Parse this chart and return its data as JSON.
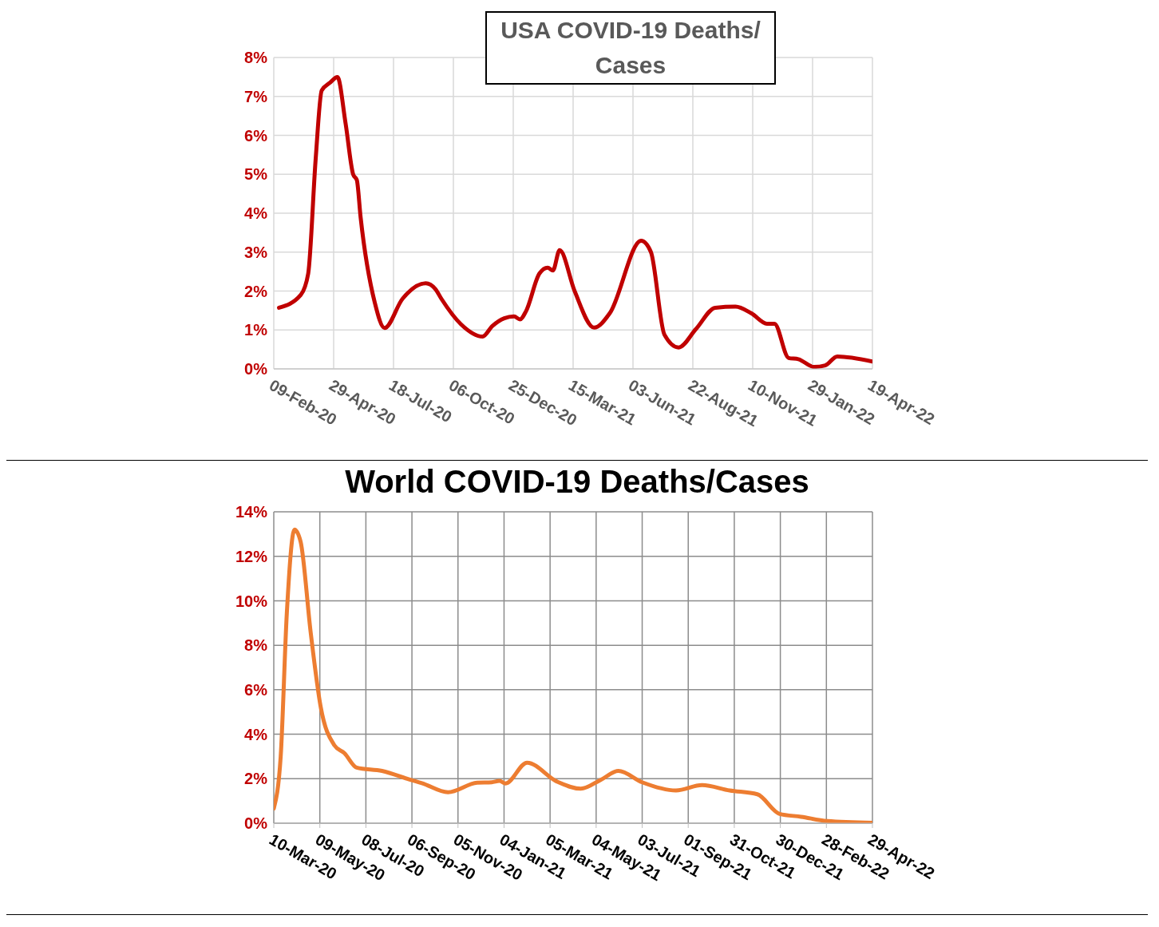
{
  "chart_data": [
    {
      "type": "line",
      "title": "USA COVID-19 Deaths/ Cases",
      "grid": true,
      "line_style": "solid",
      "xlim": [
        "2020-02-09",
        "2022-04-19"
      ],
      "xticks": [
        {
          "value": "2020-02-09",
          "label": "09-Feb-20"
        },
        {
          "value": "2020-04-29",
          "label": "29-Apr-20"
        },
        {
          "value": "2020-07-18",
          "label": "18-Jul-20"
        },
        {
          "value": "2020-10-06",
          "label": "06-Oct-20"
        },
        {
          "value": "2020-12-25",
          "label": "25-Dec-20"
        },
        {
          "value": "2021-03-15",
          "label": "15-Mar-21"
        },
        {
          "value": "2021-06-03",
          "label": "03-Jun-21"
        },
        {
          "value": "2021-08-22",
          "label": "22-Aug-21"
        },
        {
          "value": "2021-11-10",
          "label": "10-Nov-21"
        },
        {
          "value": "2022-01-29",
          "label": "29-Jan-22"
        },
        {
          "value": "2022-04-19",
          "label": "19-Apr-22"
        }
      ],
      "ylim": [
        0,
        8
      ],
      "yticks": [
        {
          "value": 0,
          "label": "0%"
        },
        {
          "value": 1,
          "label": "1%"
        },
        {
          "value": 2,
          "label": "2%"
        },
        {
          "value": 3,
          "label": "3%"
        },
        {
          "value": 4,
          "label": "4%"
        },
        {
          "value": 5,
          "label": "5%"
        },
        {
          "value": 6,
          "label": "6%"
        },
        {
          "value": 7,
          "label": "7%"
        },
        {
          "value": 8,
          "label": "8%"
        }
      ],
      "x": [
        "2020-02-16",
        "2020-03-16",
        "2020-03-26",
        "2020-04-05",
        "2020-04-13",
        "2020-04-24",
        "2020-05-04",
        "2020-05-15",
        "2020-05-25",
        "2020-05-30",
        "2020-06-04",
        "2020-06-23",
        "2020-07-06",
        "2020-07-30",
        "2020-08-30",
        "2020-09-12",
        "2020-09-20",
        "2020-10-16",
        "2020-11-14",
        "2020-11-27",
        "2020-12-13",
        "2020-12-26",
        "2021-01-03",
        "2021-01-11",
        "2021-01-29",
        "2021-02-09",
        "2021-02-16",
        "2021-02-25",
        "2021-03-17",
        "2021-04-12",
        "2021-05-03",
        "2021-06-14",
        "2021-06-27",
        "2021-07-15",
        "2021-08-03",
        "2021-08-26",
        "2021-09-21",
        "2021-10-18",
        "2021-11-08",
        "2021-11-29",
        "2021-12-09",
        "2021-12-28",
        "2022-01-10",
        "2022-01-31",
        "2022-02-15",
        "2022-03-03",
        "2022-04-19"
      ],
      "series": [
        {
          "color": "#c00000",
          "values": [
            1.57,
            1.9,
            2.45,
            5.4,
            7.15,
            7.35,
            7.5,
            6.3,
            5.0,
            4.85,
            3.9,
            1.7,
            1.05,
            1.8,
            2.2,
            2.05,
            1.8,
            1.15,
            0.83,
            1.1,
            1.3,
            1.35,
            1.27,
            1.48,
            2.45,
            2.6,
            2.53,
            3.05,
            2.0,
            1.06,
            1.43,
            3.29,
            3.0,
            0.88,
            0.55,
            1.02,
            1.57,
            1.6,
            1.43,
            1.16,
            1.16,
            0.28,
            0.25,
            0.05,
            0.09,
            0.32,
            0.19
          ]
        }
      ]
    },
    {
      "type": "line",
      "title": "World COVID-19 Deaths/Cases",
      "grid": true,
      "line_style": "solid",
      "xlim": [
        "2020-03-10",
        "2022-04-29"
      ],
      "xticks": [
        {
          "value": "2020-03-10",
          "label": "10-Mar-20"
        },
        {
          "value": "2020-05-09",
          "label": "09-May-20"
        },
        {
          "value": "2020-07-08",
          "label": "08-Jul-20"
        },
        {
          "value": "2020-09-06",
          "label": "06-Sep-20"
        },
        {
          "value": "2020-11-05",
          "label": "05-Nov-20"
        },
        {
          "value": "2021-01-04",
          "label": "04-Jan-21"
        },
        {
          "value": "2021-03-05",
          "label": "05-Mar-21"
        },
        {
          "value": "2021-05-04",
          "label": "04-May-21"
        },
        {
          "value": "2021-07-03",
          "label": "03-Jul-21"
        },
        {
          "value": "2021-09-01",
          "label": "01-Sep-21"
        },
        {
          "value": "2021-10-31",
          "label": "31-Oct-21"
        },
        {
          "value": "2021-12-30",
          "label": "30-Dec-21"
        },
        {
          "value": "2022-02-28",
          "label": "28-Feb-22"
        },
        {
          "value": "2022-04-29",
          "label": "29-Apr-22"
        }
      ],
      "ylim": [
        0,
        14
      ],
      "yticks": [
        {
          "value": 0,
          "label": "0%"
        },
        {
          "value": 2,
          "label": "2%"
        },
        {
          "value": 4,
          "label": "4%"
        },
        {
          "value": 6,
          "label": "6%"
        },
        {
          "value": 8,
          "label": "8%"
        },
        {
          "value": 10,
          "label": "10%"
        },
        {
          "value": 12,
          "label": "12%"
        },
        {
          "value": 14,
          "label": "14%"
        }
      ],
      "x": [
        "2020-03-10",
        "2020-03-19",
        "2020-03-27",
        "2020-04-06",
        "2020-04-14",
        "2020-04-27",
        "2020-05-10",
        "2020-05-28",
        "2020-06-10",
        "2020-06-26",
        "2020-07-29",
        "2020-09-04",
        "2020-09-19",
        "2020-10-23",
        "2020-11-30",
        "2020-12-19",
        "2020-12-29",
        "2021-01-06",
        "2021-02-03",
        "2021-03-14",
        "2021-04-14",
        "2021-05-10",
        "2021-06-02",
        "2021-07-03",
        "2021-08-16",
        "2021-09-19",
        "2021-10-25",
        "2021-11-30",
        "2021-12-29",
        "2022-01-26",
        "2022-03-01",
        "2022-04-29"
      ],
      "series": [
        {
          "color": "#ed7d31",
          "values": [
            0.66,
            3.0,
            9.45,
            13.2,
            12.65,
            8.6,
            5.25,
            3.5,
            3.15,
            2.5,
            2.35,
            1.95,
            1.8,
            1.39,
            1.82,
            1.84,
            1.9,
            1.79,
            2.72,
            1.87,
            1.55,
            1.95,
            2.35,
            1.84,
            1.47,
            1.71,
            1.47,
            1.3,
            0.42,
            0.29,
            0.1,
            0.02
          ]
        }
      ]
    }
  ]
}
